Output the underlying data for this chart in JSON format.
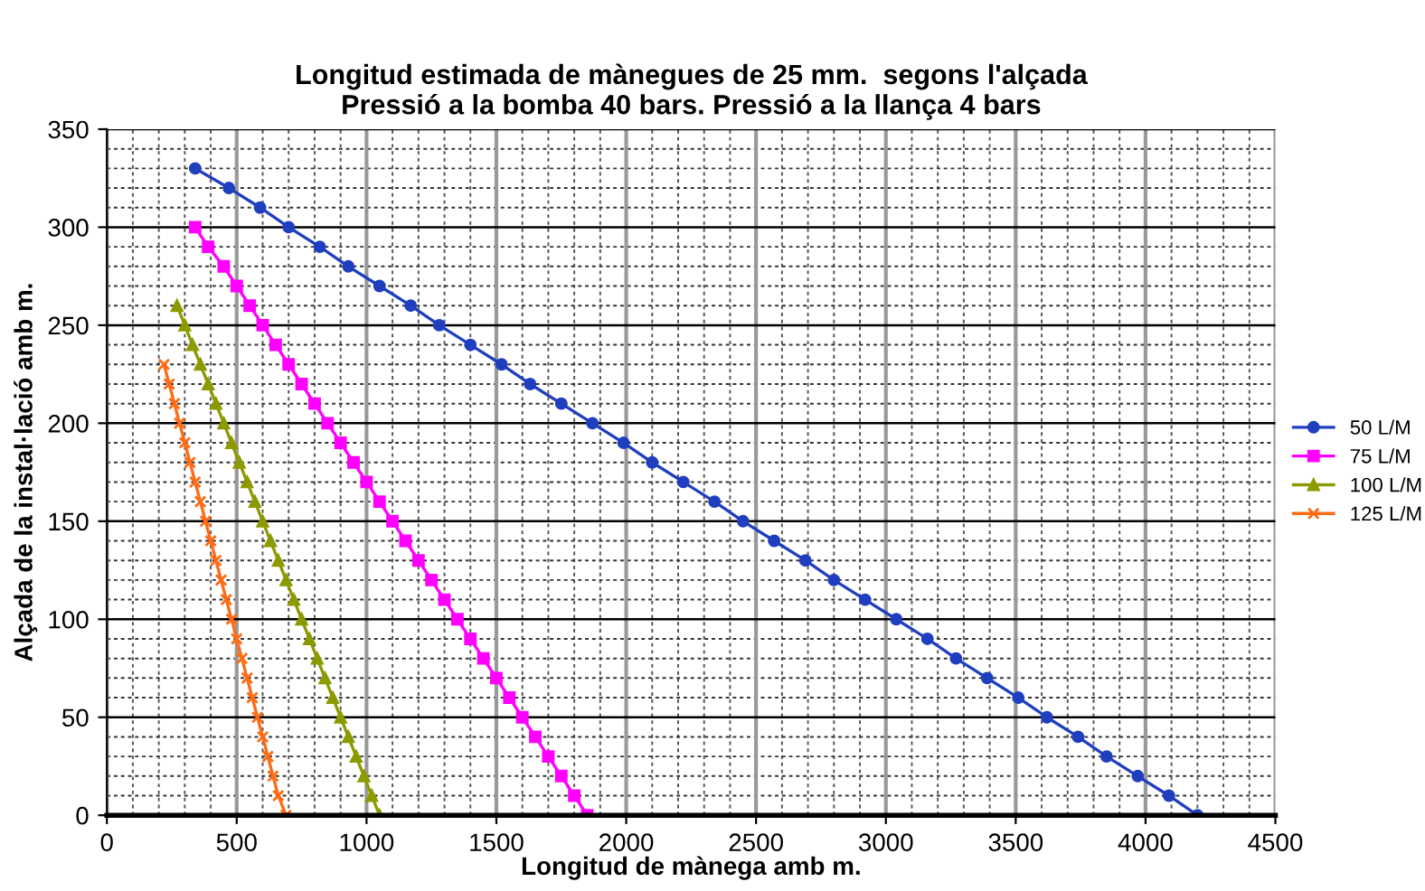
{
  "chart_data": {
    "type": "line",
    "title": "Longitud estimada de mànegues de 25 mm.  segons l'alçada\nPressió a la bomba 40 bars. Pressió a la llança 4 bars",
    "xlabel": "Longitud de mànega amb m.",
    "ylabel": "Alçada de la instal·lació amb m.",
    "xlim": [
      0,
      4500
    ],
    "xticks": [
      0,
      500,
      1000,
      1500,
      2000,
      2500,
      3000,
      3500,
      4000,
      4500
    ],
    "ylim": [
      0,
      350
    ],
    "yticks": [
      0,
      50,
      100,
      150,
      200,
      250,
      300,
      350
    ],
    "grid": true,
    "legend": "right",
    "series": [
      {
        "name": "50 L/M",
        "color": "#1f3fbf",
        "marker": "circle",
        "x": [
          340,
          470,
          590,
          700,
          820,
          930,
          1050,
          1170,
          1280,
          1400,
          1520,
          1630,
          1750,
          1870,
          1990,
          2100,
          2220,
          2340,
          2450,
          2570,
          2690,
          2800,
          2920,
          3040,
          3160,
          3270,
          3390,
          3510,
          3620,
          3740,
          3850,
          3970,
          4090,
          4200
        ],
        "values": [
          330,
          320,
          310,
          300,
          290,
          280,
          270,
          260,
          250,
          240,
          230,
          220,
          210,
          200,
          190,
          180,
          170,
          160,
          150,
          140,
          130,
          120,
          110,
          100,
          90,
          80,
          70,
          60,
          50,
          40,
          30,
          20,
          10,
          0
        ]
      },
      {
        "name": "75 L/M",
        "color": "#ff00ff",
        "marker": "square",
        "x": [
          340,
          390,
          450,
          500,
          550,
          600,
          650,
          700,
          750,
          800,
          850,
          900,
          950,
          1000,
          1050,
          1100,
          1150,
          1200,
          1250,
          1300,
          1350,
          1400,
          1450,
          1500,
          1550,
          1600,
          1650,
          1700,
          1750,
          1800,
          1850
        ],
        "values": [
          300,
          290,
          280,
          270,
          260,
          250,
          240,
          230,
          220,
          210,
          200,
          190,
          180,
          170,
          160,
          150,
          140,
          130,
          120,
          110,
          100,
          90,
          80,
          70,
          60,
          50,
          40,
          30,
          20,
          10,
          0
        ]
      },
      {
        "name": "100 L/M",
        "color": "#8c9a00",
        "marker": "triangle",
        "x": [
          270,
          300,
          330,
          360,
          390,
          420,
          450,
          480,
          510,
          540,
          570,
          600,
          630,
          660,
          690,
          720,
          750,
          780,
          810,
          840,
          870,
          900,
          930,
          960,
          990,
          1020,
          1050
        ],
        "values": [
          260,
          250,
          240,
          230,
          220,
          210,
          200,
          190,
          180,
          170,
          160,
          150,
          140,
          130,
          120,
          110,
          100,
          90,
          80,
          70,
          60,
          50,
          40,
          30,
          20,
          10,
          0
        ]
      },
      {
        "name": "125 L/M",
        "color": "#ff6a13",
        "marker": "cross",
        "x": [
          220,
          240,
          260,
          280,
          300,
          320,
          340,
          360,
          380,
          400,
          420,
          440,
          460,
          480,
          500,
          520,
          540,
          560,
          580,
          600,
          620,
          640,
          660,
          690
        ],
        "values": [
          230,
          220,
          210,
          200,
          190,
          180,
          170,
          160,
          150,
          140,
          130,
          120,
          110,
          100,
          90,
          80,
          70,
          60,
          50,
          40,
          30,
          20,
          10,
          0
        ]
      }
    ]
  }
}
